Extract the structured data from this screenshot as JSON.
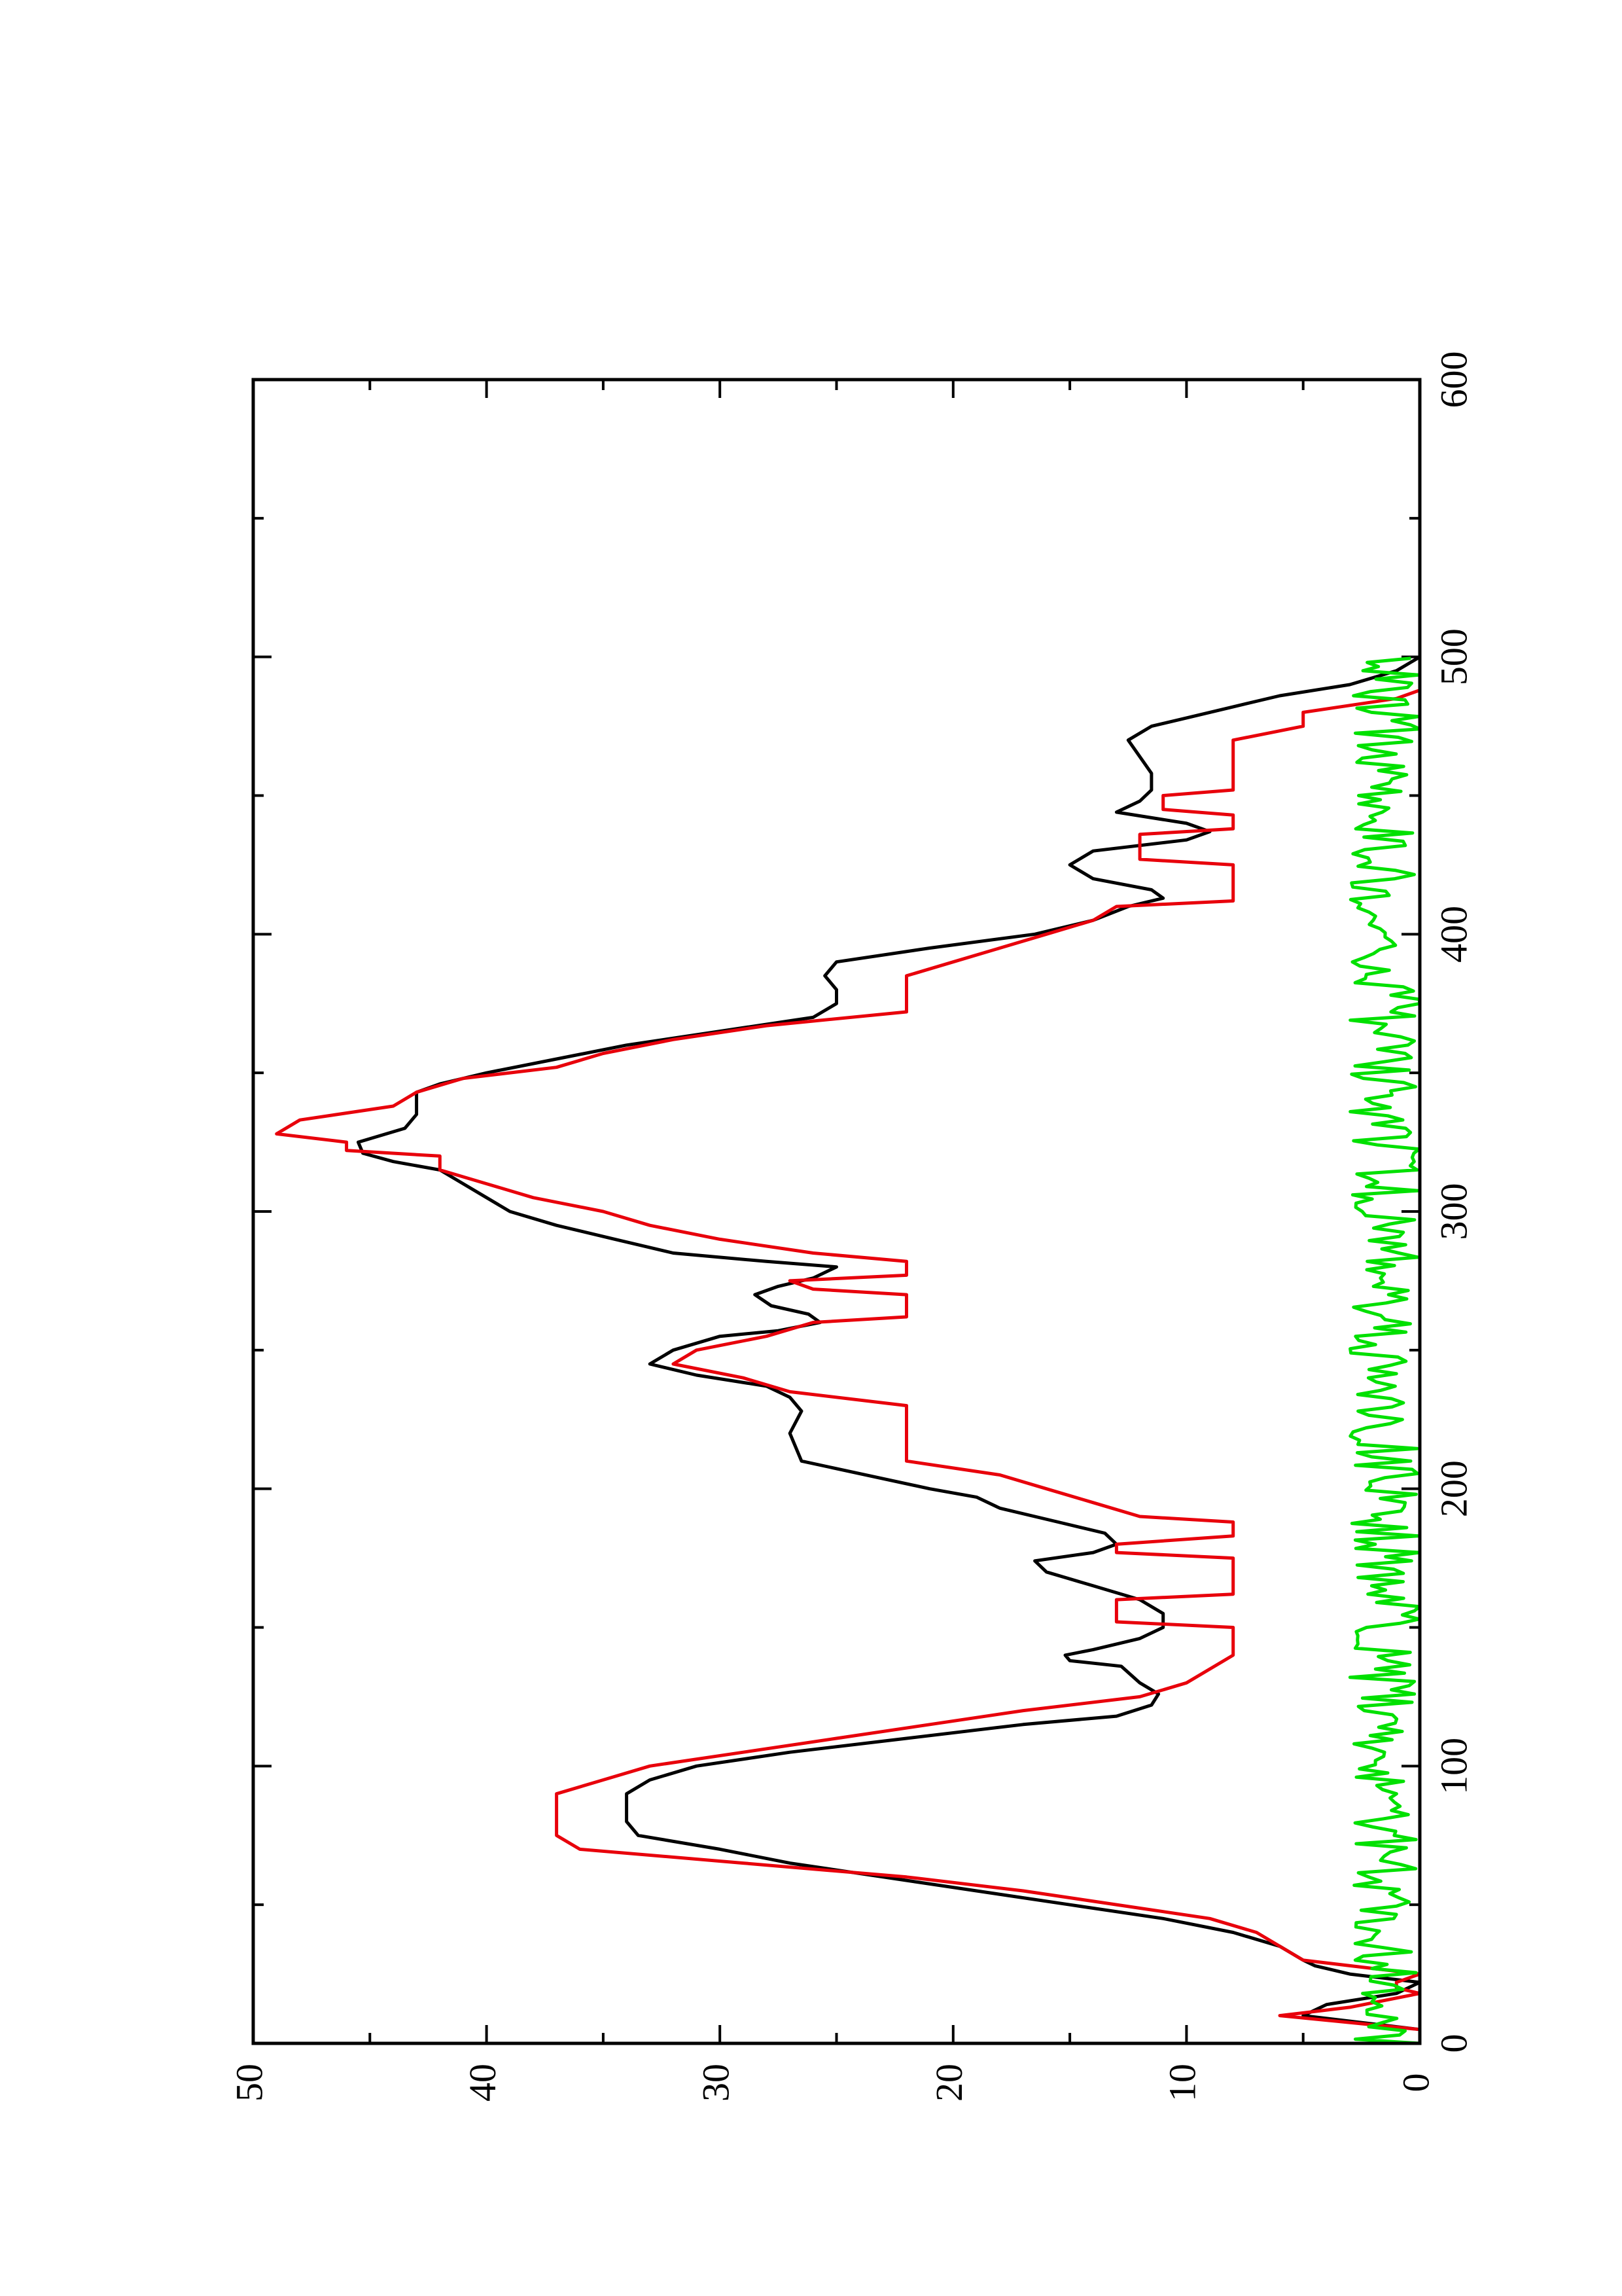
{
  "chart_data": {
    "type": "line",
    "orientation": "rotated-90-ccw",
    "title": "",
    "xlabel": "",
    "ylabel": "",
    "xlim": [
      0,
      600
    ],
    "ylim": [
      0,
      50
    ],
    "grid": false,
    "x_ticks": [
      0,
      100,
      200,
      300,
      400,
      500,
      600
    ],
    "x_minor_ticks": [
      50,
      150,
      250,
      350,
      450,
      550
    ],
    "y_ticks": [
      0,
      10,
      20,
      30,
      40,
      50
    ],
    "y_minor_ticks": [
      5,
      15,
      25,
      35,
      45
    ],
    "series": [
      {
        "name": "",
        "color": "#000000",
        "style": "line",
        "points": [
          [
            0,
            0
          ],
          [
            5,
            0
          ],
          [
            10,
            5
          ],
          [
            14,
            4
          ],
          [
            18,
            1
          ],
          [
            22,
            0
          ],
          [
            25,
            3
          ],
          [
            28,
            4.5
          ],
          [
            30,
            5
          ],
          [
            35,
            6
          ],
          [
            40,
            8
          ],
          [
            45,
            11
          ],
          [
            50,
            15
          ],
          [
            55,
            19
          ],
          [
            60,
            23
          ],
          [
            65,
            27
          ],
          [
            70,
            30
          ],
          [
            75,
            33.5
          ],
          [
            80,
            34
          ],
          [
            90,
            34
          ],
          [
            95,
            33
          ],
          [
            100,
            31
          ],
          [
            105,
            27
          ],
          [
            110,
            22
          ],
          [
            115,
            17
          ],
          [
            118,
            13
          ],
          [
            122,
            11.5
          ],
          [
            126,
            11.2
          ],
          [
            130,
            12
          ],
          [
            136,
            12.8
          ],
          [
            138,
            15
          ],
          [
            140,
            15.2
          ],
          [
            142,
            14
          ],
          [
            146,
            12
          ],
          [
            150,
            11
          ],
          [
            155,
            11
          ],
          [
            160,
            12
          ],
          [
            165,
            14
          ],
          [
            170,
            16
          ],
          [
            174,
            16.5
          ],
          [
            177,
            14
          ],
          [
            180,
            13
          ],
          [
            184,
            13.5
          ],
          [
            188,
            15.5
          ],
          [
            193,
            18
          ],
          [
            197,
            19
          ],
          [
            200,
            21
          ],
          [
            210,
            26.5
          ],
          [
            220,
            27
          ],
          [
            228,
            26.5
          ],
          [
            233,
            27
          ],
          [
            237,
            28
          ],
          [
            241,
            31
          ],
          [
            245,
            33
          ],
          [
            250,
            32
          ],
          [
            255,
            30
          ],
          [
            257,
            27.5
          ],
          [
            260,
            25.7
          ],
          [
            263,
            26.2
          ],
          [
            266,
            27.8
          ],
          [
            270,
            28.5
          ],
          [
            273,
            27.5
          ],
          [
            276,
            26
          ],
          [
            280,
            25
          ],
          [
            282,
            28
          ],
          [
            285,
            32
          ],
          [
            290,
            34.5
          ],
          [
            295,
            37
          ],
          [
            300,
            39
          ],
          [
            305,
            40
          ],
          [
            310,
            41
          ],
          [
            315,
            42
          ],
          [
            318,
            44
          ],
          [
            321,
            45.3
          ],
          [
            325,
            45.5
          ],
          [
            330,
            43.5
          ],
          [
            335,
            43
          ],
          [
            340,
            43
          ],
          [
            343,
            43
          ],
          [
            346,
            42
          ],
          [
            350,
            40
          ],
          [
            355,
            37
          ],
          [
            360,
            34
          ],
          [
            365,
            30
          ],
          [
            370,
            26
          ],
          [
            375,
            25
          ],
          [
            380,
            25
          ],
          [
            385,
            25.5
          ],
          [
            390,
            25
          ],
          [
            395,
            21
          ],
          [
            400,
            16.5
          ],
          [
            405,
            14
          ],
          [
            410,
            12.5
          ],
          [
            413,
            11
          ],
          [
            416,
            11.5
          ],
          [
            420,
            14
          ],
          [
            425,
            15
          ],
          [
            430,
            14
          ],
          [
            434,
            10
          ],
          [
            437,
            9
          ],
          [
            440,
            10
          ],
          [
            444,
            13
          ],
          [
            448,
            12
          ],
          [
            452,
            11.5
          ],
          [
            458,
            11.5
          ],
          [
            464,
            12
          ],
          [
            470,
            12.5
          ],
          [
            475,
            11.5
          ],
          [
            478,
            10
          ],
          [
            482,
            8
          ],
          [
            486,
            6
          ],
          [
            490,
            3
          ],
          [
            495,
            1
          ],
          [
            500,
            0
          ]
        ]
      },
      {
        "name": "",
        "color": "#e8000b",
        "style": "line",
        "points": [
          [
            0,
            0
          ],
          [
            5,
            0
          ],
          [
            10,
            6
          ],
          [
            13,
            3
          ],
          [
            18,
            0
          ],
          [
            20,
            1
          ],
          [
            22,
            1
          ],
          [
            25,
            0
          ],
          [
            30,
            5
          ],
          [
            40,
            7
          ],
          [
            45,
            9
          ],
          [
            55,
            17
          ],
          [
            60,
            22
          ],
          [
            65,
            29
          ],
          [
            70,
            36
          ],
          [
            75,
            37
          ],
          [
            90,
            37
          ],
          [
            95,
            35
          ],
          [
            100,
            33
          ],
          [
            105,
            29
          ],
          [
            110,
            25
          ],
          [
            115,
            21
          ],
          [
            120,
            17
          ],
          [
            125,
            12
          ],
          [
            130,
            10
          ],
          [
            140,
            8
          ],
          [
            150,
            8
          ],
          [
            152,
            13
          ],
          [
            160,
            13
          ],
          [
            162,
            8
          ],
          [
            175,
            8
          ],
          [
            177,
            13
          ],
          [
            180,
            13
          ],
          [
            183,
            8
          ],
          [
            188,
            8
          ],
          [
            190,
            12
          ],
          [
            195,
            14
          ],
          [
            200,
            16
          ],
          [
            205,
            18
          ],
          [
            210,
            22
          ],
          [
            230,
            22
          ],
          [
            235,
            27
          ],
          [
            240,
            29
          ],
          [
            245,
            32
          ],
          [
            250,
            31
          ],
          [
            255,
            28
          ],
          [
            260,
            26
          ],
          [
            262,
            22
          ],
          [
            270,
            22
          ],
          [
            272,
            26
          ],
          [
            275,
            27
          ],
          [
            277,
            22
          ],
          [
            282,
            22
          ],
          [
            285,
            26
          ],
          [
            290,
            30
          ],
          [
            295,
            33
          ],
          [
            300,
            35
          ],
          [
            305,
            38
          ],
          [
            310,
            40
          ],
          [
            315,
            42
          ],
          [
            320,
            42
          ],
          [
            322,
            46
          ],
          [
            325,
            46
          ],
          [
            328,
            49
          ],
          [
            333,
            48
          ],
          [
            338,
            44
          ],
          [
            343,
            43
          ],
          [
            348,
            41
          ],
          [
            352,
            37
          ],
          [
            357,
            35
          ],
          [
            362,
            32
          ],
          [
            367,
            28
          ],
          [
            372,
            22
          ],
          [
            385,
            22
          ],
          [
            390,
            20
          ],
          [
            395,
            18
          ],
          [
            400,
            16
          ],
          [
            405,
            14
          ],
          [
            410,
            13
          ],
          [
            412,
            8
          ],
          [
            425,
            8
          ],
          [
            427,
            12
          ],
          [
            436,
            12
          ],
          [
            438,
            8
          ],
          [
            443,
            8
          ],
          [
            445,
            11
          ],
          [
            450,
            11
          ],
          [
            452,
            8
          ],
          [
            470,
            8
          ],
          [
            475,
            5
          ],
          [
            480,
            5
          ],
          [
            485,
            1
          ],
          [
            488,
            0
          ],
          [
            500,
            0
          ]
        ]
      },
      {
        "name": "",
        "color": "#00e000",
        "style": "noise-line",
        "baseline": 0,
        "amplitude": 3,
        "x_range": [
          0,
          500
        ]
      }
    ]
  }
}
